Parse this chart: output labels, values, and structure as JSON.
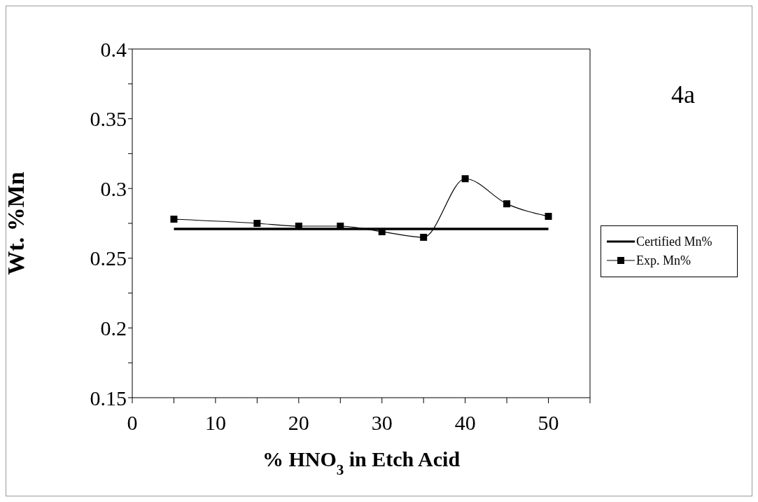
{
  "chart_data": {
    "type": "line",
    "xlabel": "% HNO$_{3}$ in Etch Acid",
    "ylabel": "Wt. %Mn",
    "annotations": [
      "4a"
    ],
    "x": [
      5,
      15,
      20,
      25,
      30,
      35,
      40,
      45,
      50
    ],
    "series": [
      {
        "name": "Certified Mn%",
        "color": "#000000",
        "x": [
          5,
          50
        ],
        "values": [
          0.271,
          0.271
        ],
        "marker": "none"
      },
      {
        "name": "Exp. Mn%",
        "color": "#000000",
        "values": [
          0.278,
          0.275,
          0.273,
          0.273,
          0.269,
          0.265,
          0.307,
          0.289,
          0.28
        ],
        "marker": "square"
      }
    ],
    "xlim": [
      0,
      55
    ],
    "xticks": [
      0,
      {
        "value": 5,
        "label": null
      },
      10,
      {
        "value": 15,
        "label": null
      },
      20,
      {
        "value": 25,
        "label": null
      },
      30,
      {
        "value": 35,
        "label": null
      },
      40,
      {
        "value": 45,
        "label": null
      },
      50,
      {
        "value": 55,
        "label": null
      }
    ],
    "ylim": [
      0.15,
      0.4
    ],
    "yticks": [
      0.15,
      {
        "value": 0.175,
        "label": null
      },
      0.2,
      {
        "value": 0.225,
        "label": null
      },
      0.25,
      {
        "value": 0.275,
        "label": null
      },
      0.3,
      {
        "value": 0.325,
        "label": null
      },
      0.35,
      {
        "value": 0.375,
        "label": null
      },
      0.4
    ],
    "grid": false,
    "legend": "right",
    "line_style": "solid"
  }
}
